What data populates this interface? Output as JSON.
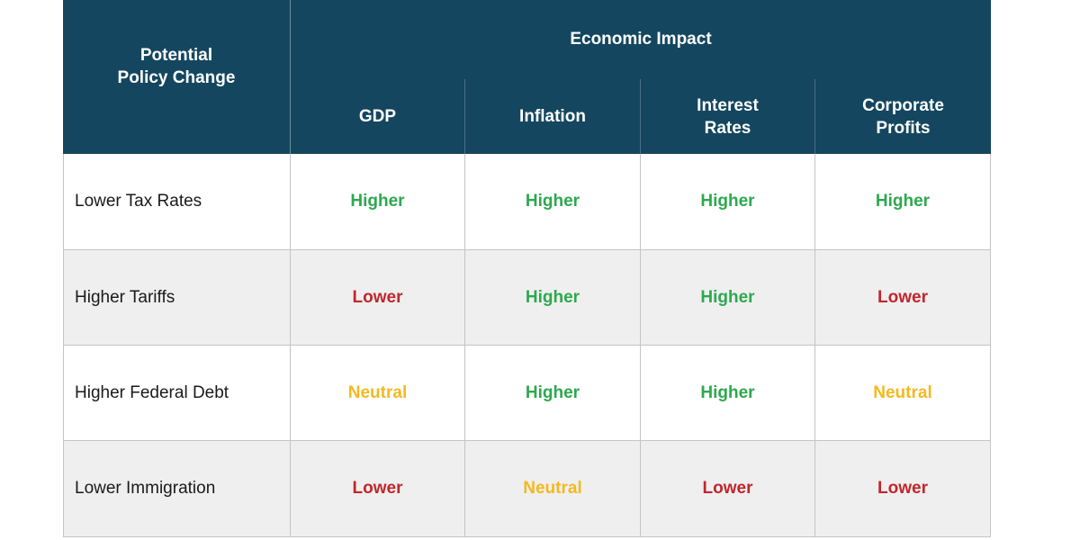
{
  "table": {
    "header": {
      "policy": "Potential\nPolicy Change",
      "group": "Economic Impact",
      "columns": [
        "GDP",
        "Inflation",
        "Interest\nRates",
        "Corporate\nProfits"
      ]
    },
    "rows": [
      {
        "policy": "Lower Tax Rates",
        "cells": [
          "Higher",
          "Higher",
          "Higher",
          "Higher"
        ]
      },
      {
        "policy": "Higher Tariffs",
        "cells": [
          "Lower",
          "Higher",
          "Higher",
          "Lower"
        ]
      },
      {
        "policy": "Higher Federal Debt",
        "cells": [
          "Neutral",
          "Higher",
          "Higher",
          "Neutral"
        ]
      },
      {
        "policy": "Lower Immigration",
        "cells": [
          "Lower",
          "Neutral",
          "Lower",
          "Lower"
        ]
      }
    ],
    "value_colors": {
      "Higher": "#2ea84f",
      "Lower": "#c0272d",
      "Neutral": "#f4b920"
    },
    "header_color": "#14475f"
  }
}
